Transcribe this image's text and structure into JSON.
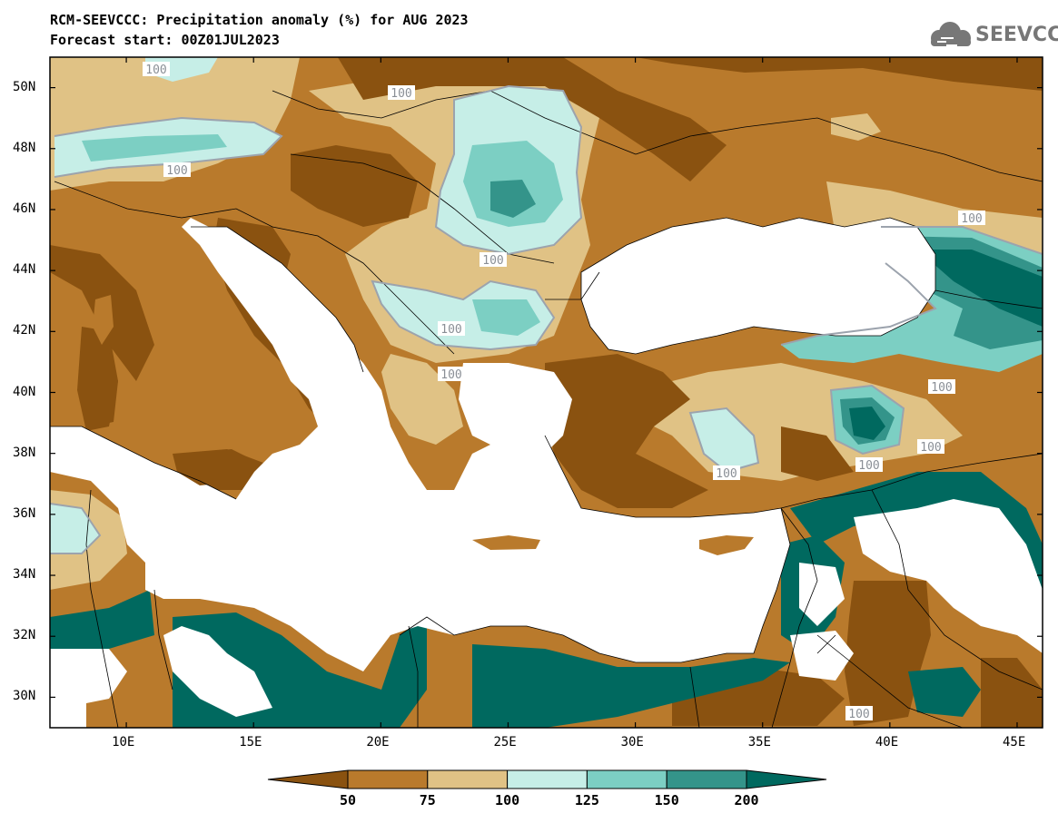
{
  "header": {
    "title_line1": "RCM-SEEVCCC: Precipitation anomaly (%) for AUG 2023",
    "title_line2": "Forecast start: 00Z01JUL2023",
    "logo_text": "SEEVCCC"
  },
  "map": {
    "lon_range": [
      7,
      46
    ],
    "lat_range": [
      29,
      51
    ],
    "lon_ticks": [
      "10E",
      "15E",
      "20E",
      "25E",
      "30E",
      "35E",
      "40E",
      "45E"
    ],
    "lat_ticks": [
      "30N",
      "32N",
      "34N",
      "36N",
      "38N",
      "40N",
      "42N",
      "44N",
      "46N",
      "48N",
      "50N"
    ],
    "contour_labels": [
      "100",
      "100",
      "100",
      "100",
      "100",
      "100",
      "100",
      "100",
      "100",
      "100",
      "100",
      "100"
    ]
  },
  "colorbar": {
    "labels": [
      "50",
      "75",
      "100",
      "125",
      "150",
      "200"
    ],
    "colors": [
      "#8a5210",
      "#b97a2c",
      "#e0c285",
      "#c6eee7",
      "#7ccfc3",
      "#34948a",
      "#00695f"
    ],
    "classes": [
      "<50",
      "50-75",
      "75-100",
      "100-125",
      "125-150",
      "150-200",
      ">200"
    ]
  }
}
